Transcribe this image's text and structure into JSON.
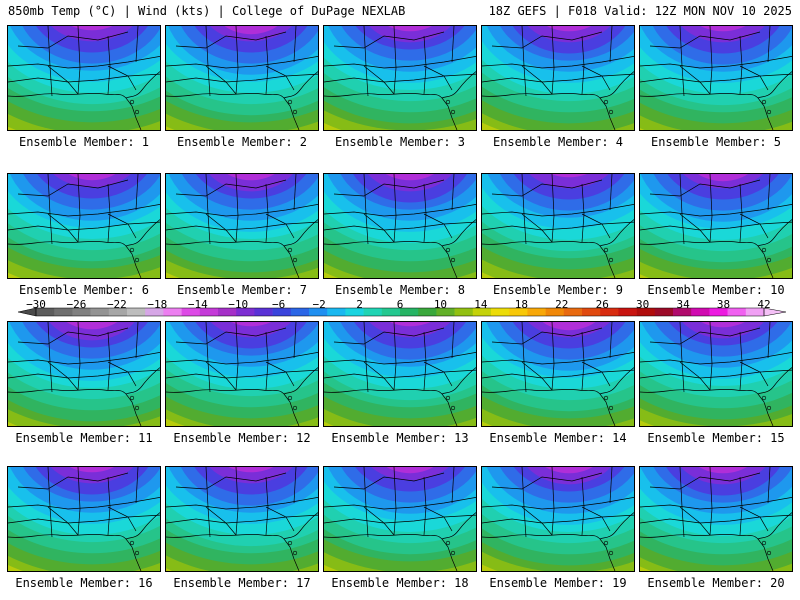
{
  "header": {
    "left": "850mb Temp (°C) | Wind (kts) | College of DuPage NEXLAB",
    "right": "18Z GEFS | F018 Valid: 12Z MON NOV 10 2025"
  },
  "caption_prefix": "Ensemble Member:",
  "members": [
    {
      "label": "Ensemble Member: 1"
    },
    {
      "label": "Ensemble Member: 2"
    },
    {
      "label": "Ensemble Member: 3"
    },
    {
      "label": "Ensemble Member: 4"
    },
    {
      "label": "Ensemble Member: 5"
    },
    {
      "label": "Ensemble Member: 6"
    },
    {
      "label": "Ensemble Member: 7"
    },
    {
      "label": "Ensemble Member: 8"
    },
    {
      "label": "Ensemble Member: 9"
    },
    {
      "label": "Ensemble Member: 10"
    },
    {
      "label": "Ensemble Member: 11"
    },
    {
      "label": "Ensemble Member: 12"
    },
    {
      "label": "Ensemble Member: 13"
    },
    {
      "label": "Ensemble Member: 14"
    },
    {
      "label": "Ensemble Member: 15"
    },
    {
      "label": "Ensemble Member: 16"
    },
    {
      "label": "Ensemble Member: 17"
    },
    {
      "label": "Ensemble Member: 18"
    },
    {
      "label": "Ensemble Member: 19"
    },
    {
      "label": "Ensemble Member: 20"
    }
  ],
  "colorbar": {
    "labels": [
      "-30",
      "-26",
      "-22",
      "-18",
      "-14",
      "-10",
      "-6",
      "-2",
      "2",
      "6",
      "10",
      "14",
      "18",
      "22",
      "26",
      "30",
      "34",
      "38",
      "42"
    ],
    "colors": [
      "#5c5c5c",
      "#6f6f6f",
      "#808080",
      "#939393",
      "#a6a6a6",
      "#bdbdbd",
      "#d6a6e6",
      "#ec7ff0",
      "#dd4ae6",
      "#c43ad8",
      "#a530c8",
      "#7d2ed2",
      "#5a32d6",
      "#3a44dc",
      "#2b66e6",
      "#1f8ff0",
      "#1ab8f0",
      "#1ad4e0",
      "#20d4b4",
      "#24c890",
      "#26b464",
      "#3aa83c",
      "#62b028",
      "#92c012",
      "#c4d20a",
      "#ecdc08",
      "#f8c808",
      "#f8a808",
      "#f08808",
      "#e86a10",
      "#e04a10",
      "#d82c10",
      "#c81410",
      "#b00c0c",
      "#9c0a28",
      "#b00a6c",
      "#d00ab0",
      "#ec1ae0",
      "#f060f0",
      "#f0a0f4"
    ]
  },
  "map_icons": "temperature-field-map"
}
